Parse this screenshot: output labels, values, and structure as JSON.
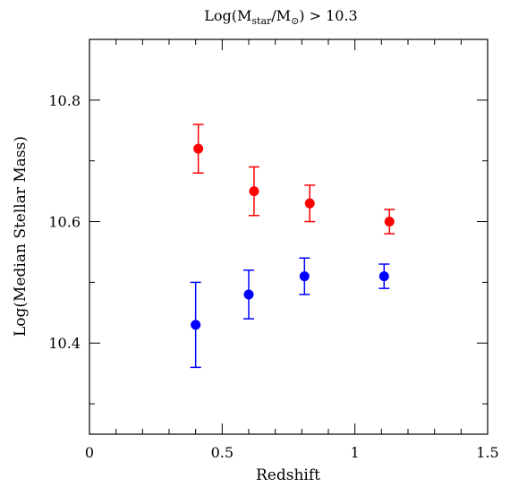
{
  "chart_data": {
    "type": "scatter",
    "title_parts": {
      "prefix": "Log(M",
      "sub1": "star",
      "mid": "/M",
      "sub2": "⊙",
      "suffix": ") > 10.3"
    },
    "xlabel": "Redshift",
    "ylabel": "Log(Median Stellar Mass)",
    "xlim": [
      0,
      1.5
    ],
    "ylim": [
      10.25,
      10.9
    ],
    "xticks_major": [
      0,
      0.5,
      1,
      1.5
    ],
    "xtick_labels": [
      "0",
      "0.5",
      "1",
      "1.5"
    ],
    "xticks_minor": [
      0.1,
      0.2,
      0.3,
      0.4,
      0.6,
      0.7,
      0.8,
      0.9,
      1.1,
      1.2,
      1.3,
      1.4
    ],
    "yticks_major": [
      10.4,
      10.6,
      10.8
    ],
    "ytick_labels": [
      "10.4",
      "10.6",
      "10.8"
    ],
    "yticks_minor": [
      10.3,
      10.5,
      10.7
    ],
    "grid": false,
    "series": [
      {
        "color": "#ff0000",
        "points": [
          {
            "x": 0.41,
            "y": 10.72,
            "err": 0.04
          },
          {
            "x": 0.62,
            "y": 10.65,
            "err": 0.04
          },
          {
            "x": 0.83,
            "y": 10.63,
            "err": 0.03
          },
          {
            "x": 1.13,
            "y": 10.6,
            "err": 0.02
          }
        ]
      },
      {
        "color": "#0000ff",
        "points": [
          {
            "x": 0.4,
            "y": 10.43,
            "err": 0.07
          },
          {
            "x": 0.6,
            "y": 10.48,
            "err": 0.04
          },
          {
            "x": 0.81,
            "y": 10.51,
            "err": 0.03
          },
          {
            "x": 1.11,
            "y": 10.51,
            "err": 0.02
          }
        ]
      }
    ]
  }
}
